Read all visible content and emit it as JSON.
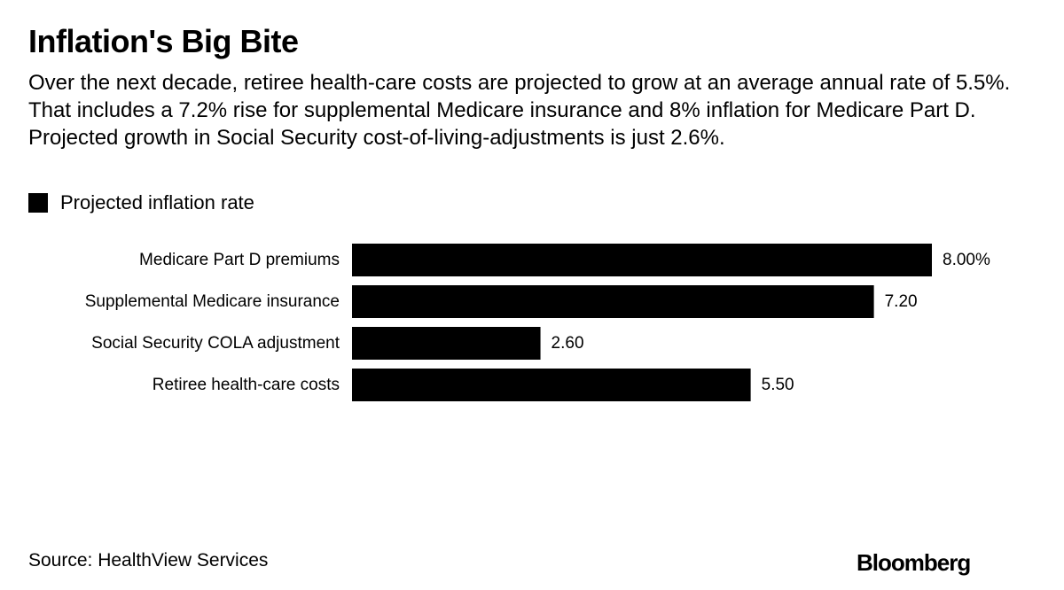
{
  "title": "Inflation's Big Bite",
  "subtitle": "Over the next decade, retiree health-care costs are projected to grow at an average annual rate of 5.5%. That includes a 7.2% rise for supplemental Medicare insurance and 8% inflation for Medicare Part D. Projected growth in Social Security cost-of-living-adjustments is just 2.6%.",
  "legend": {
    "label": "Projected inflation rate",
    "color": "#000000"
  },
  "source": "Source: HealthView Services",
  "brand": "Bloomberg",
  "chart_data": {
    "type": "bar",
    "orientation": "horizontal",
    "title": "Inflation's Big Bite",
    "xlabel": "",
    "ylabel": "",
    "xlim": [
      0,
      8
    ],
    "grid": false,
    "legend_position": "top-left",
    "categories": [
      "Medicare Part D premiums",
      "Supplemental Medicare insurance",
      "Social Security COLA adjustment",
      "Retiree health-care costs"
    ],
    "series": [
      {
        "name": "Projected inflation rate",
        "color": "#000000",
        "values": [
          8.0,
          7.2,
          2.6,
          5.5
        ],
        "value_labels": [
          "8.00%",
          "7.20",
          "2.60",
          "5.50"
        ]
      }
    ]
  }
}
